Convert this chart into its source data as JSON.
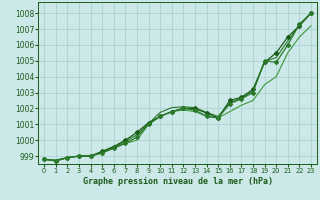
{
  "xlabel": "Graphe pression niveau de la mer (hPa)",
  "ylim": [
    998.5,
    1008.7
  ],
  "xlim": [
    -0.5,
    23.5
  ],
  "yticks": [
    999,
    1000,
    1001,
    1002,
    1003,
    1004,
    1005,
    1006,
    1007,
    1008
  ],
  "xticks": [
    0,
    1,
    2,
    3,
    4,
    5,
    6,
    7,
    8,
    9,
    10,
    11,
    12,
    13,
    14,
    15,
    16,
    17,
    18,
    19,
    20,
    21,
    22,
    23
  ],
  "bg_color": "#cce8e8",
  "grid_color": "#a8cece",
  "line_color": "#1a5c1a",
  "line_color_light": "#2a7a2a",
  "line_color_lighter": "#3a9a3a",
  "line1_nomarker": [
    998.8,
    998.7,
    998.9,
    999.0,
    999.0,
    999.2,
    999.5,
    999.8,
    1000.0,
    1001.0,
    1001.5,
    1001.8,
    1001.9,
    1001.8,
    1001.5,
    1001.4,
    1001.8,
    1002.2,
    1002.5,
    1003.5,
    1004.0,
    1005.5,
    1006.5,
    1007.2
  ],
  "line2_markers": [
    998.8,
    998.7,
    998.9,
    999.0,
    999.0,
    999.3,
    999.6,
    1000.0,
    1000.5,
    1001.1,
    1001.5,
    1001.8,
    1002.0,
    1002.0,
    1001.7,
    1001.4,
    1002.5,
    1002.7,
    1003.2,
    1004.9,
    1005.5,
    1006.5,
    1007.2,
    1008.0
  ],
  "line3_markers": [
    998.8,
    998.7,
    998.9,
    999.0,
    999.0,
    999.2,
    999.5,
    999.8,
    1000.2,
    1001.0,
    1001.5,
    1001.8,
    1002.0,
    1001.9,
    1001.5,
    1001.4,
    1002.3,
    1002.6,
    1003.0,
    1005.0,
    1004.9,
    1006.0,
    1007.3,
    1008.0
  ],
  "line4_nomarker": [
    998.8,
    998.75,
    998.9,
    999.0,
    999.0,
    999.25,
    999.55,
    999.9,
    1000.35,
    1001.05,
    1001.75,
    1002.05,
    1002.1,
    1002.05,
    1001.75,
    1001.5,
    1002.35,
    1002.65,
    1003.1,
    1004.95,
    1005.2,
    1006.25,
    1007.25,
    1008.0
  ]
}
